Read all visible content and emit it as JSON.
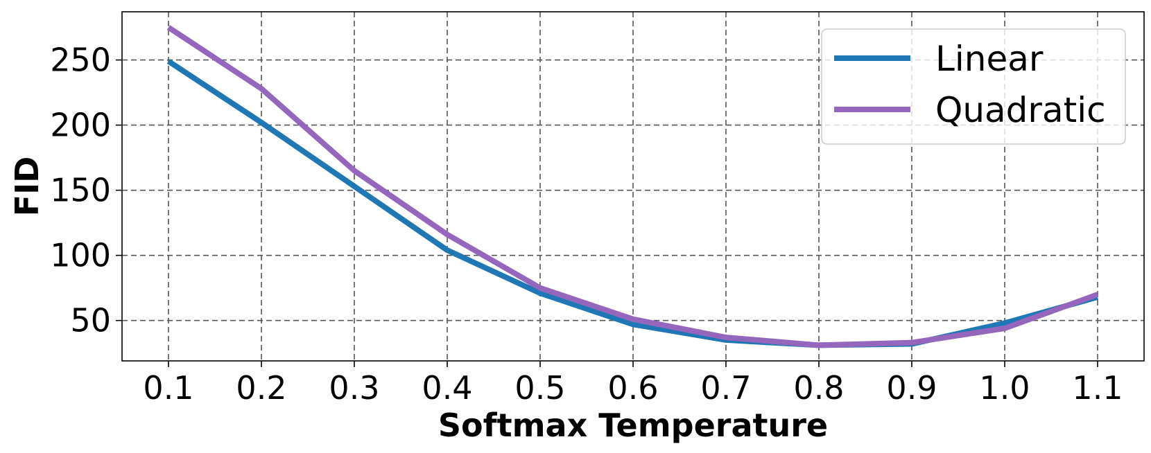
{
  "chart_data": {
    "type": "line",
    "title": "",
    "xlabel": "Softmax Temperature",
    "ylabel": "FID",
    "x": [
      0.1,
      0.2,
      0.3,
      0.4,
      0.5,
      0.6,
      0.7,
      0.8,
      0.9,
      1.0,
      1.1
    ],
    "x_tick_labels": [
      "0.1",
      "0.2",
      "0.3",
      "0.4",
      "0.5",
      "0.6",
      "0.7",
      "0.8",
      "0.9",
      "1.0",
      "1.1"
    ],
    "y_ticks": [
      50,
      100,
      150,
      200,
      250
    ],
    "y_tick_labels": [
      "50",
      "100",
      "150",
      "200",
      "250"
    ],
    "xlim": [
      0.05,
      1.15
    ],
    "ylim": [
      19,
      287
    ],
    "grid": true,
    "legend_position": "top-right",
    "series": [
      {
        "name": "Linear",
        "color": "#1f77b4",
        "values": [
          249,
          202,
          153,
          104,
          71,
          47,
          35,
          31,
          32,
          48,
          68
        ]
      },
      {
        "name": "Quadratic",
        "color": "#9467bd",
        "values": [
          275,
          228,
          165,
          116,
          75,
          51,
          37,
          31,
          33,
          44,
          70
        ]
      }
    ]
  }
}
